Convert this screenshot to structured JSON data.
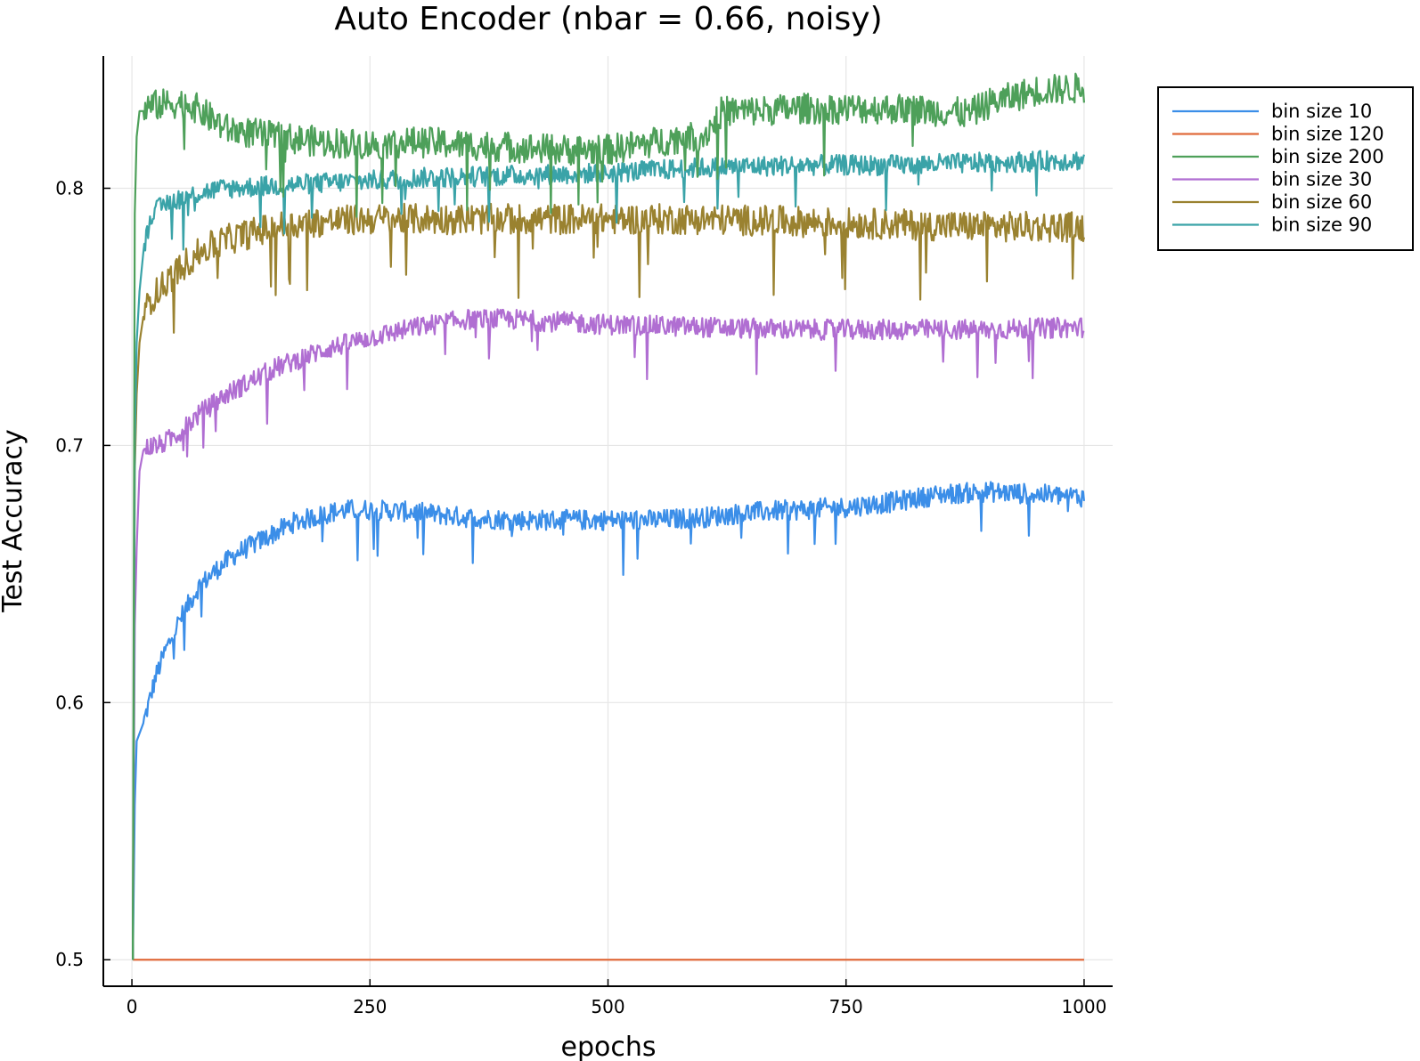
{
  "chart_data": {
    "type": "line",
    "title": "Auto Encoder (nbar = 0.66, noisy)",
    "xlabel": "epochs",
    "ylabel": "Test Accuracy",
    "xlim": [
      -30,
      1030
    ],
    "ylim": [
      0.4897,
      0.8514
    ],
    "xticks": [
      0,
      250,
      500,
      750,
      1000
    ],
    "yticks": [
      0.5,
      0.6,
      0.7,
      0.8
    ],
    "xtick_labels": [
      "0",
      "250",
      "500",
      "750",
      "1000"
    ],
    "ytick_labels": [
      "0.5",
      "0.6",
      "0.7",
      "0.8"
    ],
    "grid": true,
    "legend_position": "top-right-outside",
    "series": [
      {
        "name": "bin size 10",
        "color": "#3b8ee8",
        "noise": 0.004,
        "x": [
          1,
          3,
          5,
          8,
          12,
          18,
          25,
          35,
          50,
          70,
          90,
          110,
          130,
          150,
          170,
          190,
          210,
          230,
          250,
          300,
          350,
          400,
          450,
          500,
          550,
          600,
          650,
          700,
          750,
          800,
          850,
          900,
          950,
          1000
        ],
        "y": [
          0.5,
          0.56,
          0.585,
          0.588,
          0.592,
          0.6,
          0.61,
          0.62,
          0.632,
          0.645,
          0.652,
          0.658,
          0.662,
          0.666,
          0.67,
          0.672,
          0.674,
          0.675,
          0.675,
          0.674,
          0.672,
          0.671,
          0.671,
          0.671,
          0.671,
          0.672,
          0.674,
          0.675,
          0.676,
          0.678,
          0.681,
          0.682,
          0.681,
          0.68
        ]
      },
      {
        "name": "bin size 120",
        "color": "#e06a3b",
        "noise": 0,
        "x": [
          1,
          1000
        ],
        "y": [
          0.5,
          0.5
        ]
      },
      {
        "name": "bin size 200",
        "color": "#4ea05a",
        "noise": 0.006,
        "x": [
          1,
          3,
          5,
          8,
          12,
          20,
          40,
          60,
          80,
          100,
          150,
          200,
          250,
          300,
          350,
          400,
          450,
          500,
          550,
          580,
          600,
          620,
          650,
          700,
          750,
          800,
          850,
          880,
          900,
          950,
          1000
        ],
        "y": [
          0.5,
          0.79,
          0.82,
          0.83,
          0.83,
          0.832,
          0.833,
          0.833,
          0.828,
          0.823,
          0.82,
          0.818,
          0.817,
          0.818,
          0.817,
          0.816,
          0.815,
          0.815,
          0.818,
          0.82,
          0.82,
          0.83,
          0.83,
          0.831,
          0.831,
          0.831,
          0.83,
          0.829,
          0.833,
          0.838,
          0.839
        ]
      },
      {
        "name": "bin size 30",
        "color": "#b06ed2",
        "noise": 0.004,
        "x": [
          1,
          3,
          5,
          8,
          12,
          20,
          30,
          50,
          70,
          100,
          150,
          200,
          250,
          300,
          350,
          400,
          450,
          500,
          600,
          700,
          800,
          900,
          1000
        ],
        "y": [
          0.5,
          0.63,
          0.66,
          0.69,
          0.698,
          0.7,
          0.7,
          0.705,
          0.712,
          0.72,
          0.73,
          0.737,
          0.742,
          0.746,
          0.749,
          0.749,
          0.748,
          0.747,
          0.746,
          0.745,
          0.745,
          0.745,
          0.746
        ]
      },
      {
        "name": "bin size 60",
        "color": "#9a8230",
        "noise": 0.006,
        "x": [
          1,
          3,
          5,
          8,
          12,
          20,
          40,
          60,
          80,
          100,
          150,
          200,
          250,
          300,
          400,
          500,
          600,
          700,
          800,
          900,
          1000
        ],
        "y": [
          0.5,
          0.69,
          0.72,
          0.74,
          0.75,
          0.757,
          0.765,
          0.772,
          0.777,
          0.78,
          0.785,
          0.787,
          0.788,
          0.788,
          0.788,
          0.788,
          0.788,
          0.787,
          0.786,
          0.785,
          0.785
        ]
      },
      {
        "name": "bin size 90",
        "color": "#3aa3a8",
        "noise": 0.004,
        "x": [
          1,
          3,
          5,
          8,
          12,
          20,
          40,
          60,
          80,
          100,
          150,
          200,
          250,
          300,
          400,
          500,
          600,
          700,
          800,
          900,
          1000
        ],
        "y": [
          0.5,
          0.7,
          0.74,
          0.76,
          0.775,
          0.79,
          0.795,
          0.797,
          0.799,
          0.8,
          0.801,
          0.802,
          0.803,
          0.804,
          0.805,
          0.806,
          0.808,
          0.809,
          0.809,
          0.81,
          0.811
        ]
      }
    ]
  }
}
